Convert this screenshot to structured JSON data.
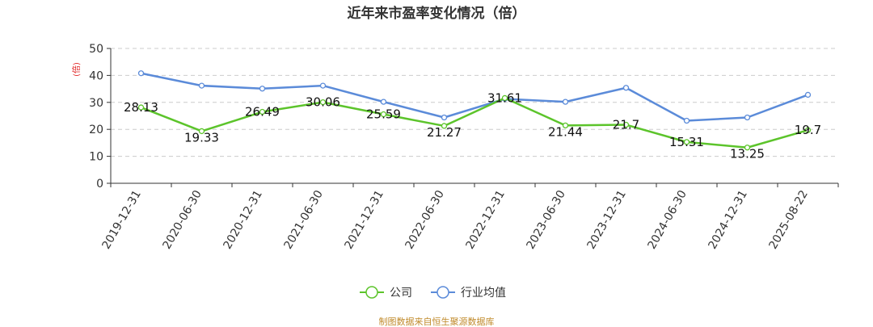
{
  "chart_data": {
    "type": "line",
    "title": "近年来市盈率变化情况（倍）",
    "ylabel": "(倍)",
    "categories": [
      "2019-12-31",
      "2020-06-30",
      "2020-12-31",
      "2021-06-30",
      "2021-12-31",
      "2022-06-30",
      "2022-12-31",
      "2023-06-30",
      "2023-12-31",
      "2024-06-30",
      "2024-12-31",
      "2025-08-22"
    ],
    "ylim": [
      0,
      50
    ],
    "yticks": [
      0,
      10,
      20,
      30,
      40,
      50
    ],
    "grid": true,
    "legend_position": "bottom-center",
    "series": [
      {
        "name": "公司",
        "color": "#5cc42b",
        "values": [
          28.13,
          19.33,
          26.49,
          30.06,
          25.59,
          21.27,
          31.61,
          21.44,
          21.7,
          15.31,
          13.25,
          19.7
        ],
        "labels": [
          "28.13",
          "19.33",
          "26.49",
          "30.06",
          "25.59",
          "21.27",
          "31.61",
          "21.44",
          "21.7",
          "15.31",
          "13.25",
          "19.7"
        ]
      },
      {
        "name": "行业均值",
        "color": "#5b8bd9",
        "values": [
          40.8,
          36.2,
          35.1,
          36.2,
          30.2,
          24.4,
          31.3,
          30.2,
          35.4,
          23.2,
          24.4,
          32.8
        ]
      }
    ]
  },
  "source": "制图数据来自恒生聚源数据库"
}
